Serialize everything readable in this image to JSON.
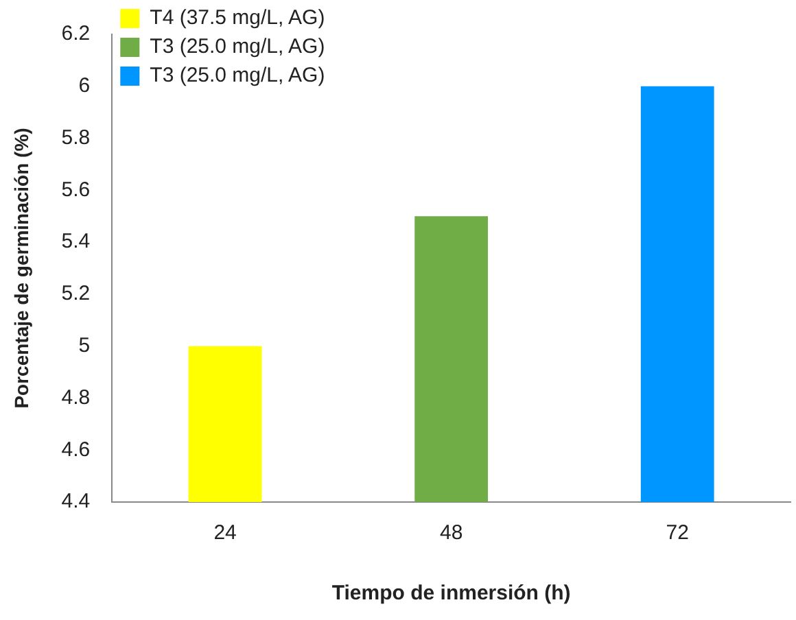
{
  "chart_data": {
    "type": "bar",
    "xlabel": "Tiempo de inmersión (h)",
    "ylabel": "Porcentaje de germinación (%)",
    "categories": [
      "24",
      "48",
      "72"
    ],
    "series": [
      {
        "name": "T4 (37.5 mg/L, AG)",
        "color": "#ffff00",
        "values": [
          5,
          null,
          null
        ]
      },
      {
        "name": "T3 (25.0 mg/L, AG)",
        "color": "#70ad47",
        "values": [
          null,
          5.5,
          null
        ]
      },
      {
        "name": "T3 (25.0 mg/L, AG)",
        "color": "#0096ff",
        "values": [
          null,
          null,
          6
        ]
      }
    ],
    "ylim": [
      4.4,
      6.2
    ],
    "yticks": [
      4.4,
      4.6,
      4.8,
      5,
      5.2,
      5.4,
      5.6,
      5.8,
      6,
      6.2
    ],
    "grid": false,
    "legend": "top left"
  }
}
